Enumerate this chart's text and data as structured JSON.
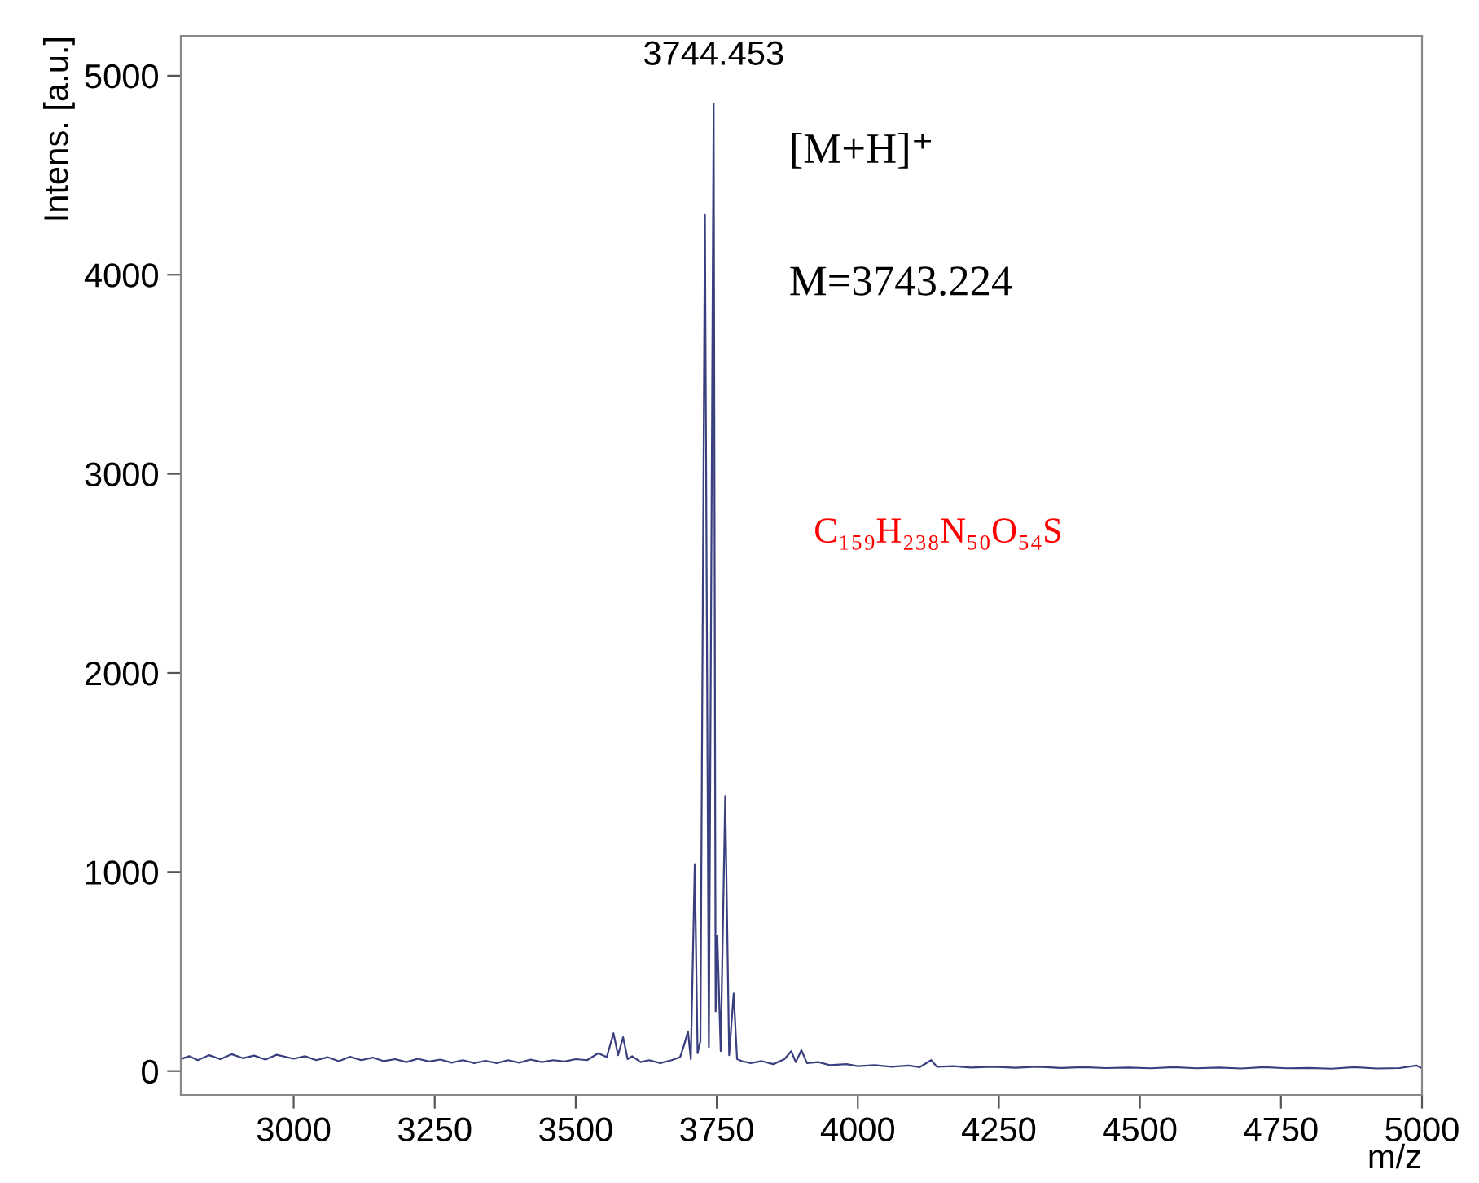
{
  "chart_data": {
    "type": "line",
    "xlabel": "m/z",
    "ylabel": "Intens. [a.u.]",
    "xlim": [
      2800,
      5000
    ],
    "xticks": [
      3000,
      3250,
      3500,
      3750,
      4000,
      4250,
      4500,
      4750,
      5000
    ],
    "ylim": [
      -120,
      5200
    ],
    "yticks": [
      0,
      1000,
      2000,
      3000,
      4000,
      5000
    ],
    "grid": false,
    "legend": false,
    "marker": "none",
    "line_style": "solid",
    "annotations": [
      {
        "text": "3744.453",
        "x": 3744.453,
        "y": 4860
      },
      "[M+H]⁺",
      "M=3743.224",
      "C₁₅₉H₂₃₈N₅₀O₅₄S"
    ],
    "series": [
      {
        "color": "#3a3f7f",
        "x": [
          2800,
          2815,
          2830,
          2850,
          2870,
          2890,
          2910,
          2930,
          2950,
          2970,
          3000,
          3020,
          3040,
          3060,
          3080,
          3100,
          3120,
          3140,
          3160,
          3180,
          3200,
          3220,
          3240,
          3260,
          3280,
          3300,
          3320,
          3340,
          3360,
          3380,
          3400,
          3420,
          3440,
          3460,
          3480,
          3500,
          3520,
          3540,
          3555,
          3567,
          3575,
          3584,
          3592,
          3600,
          3615,
          3630,
          3650,
          3670,
          3685,
          3692,
          3699,
          3704,
          3711,
          3716,
          3721,
          3729,
          3736,
          3744.453,
          3748,
          3751,
          3757,
          3765,
          3772,
          3780,
          3786,
          3795,
          3810,
          3830,
          3850,
          3870,
          3882,
          3890,
          3900,
          3910,
          3930,
          3950,
          3980,
          4000,
          4030,
          4060,
          4090,
          4110,
          4130,
          4140,
          4170,
          4200,
          4240,
          4280,
          4320,
          4360,
          4400,
          4440,
          4480,
          4520,
          4560,
          4600,
          4640,
          4680,
          4720,
          4760,
          4800,
          4840,
          4880,
          4920,
          4960,
          4990,
          5000
        ],
        "values": [
          60,
          75,
          55,
          80,
          60,
          85,
          65,
          78,
          58,
          82,
          62,
          75,
          55,
          70,
          50,
          72,
          55,
          68,
          50,
          60,
          45,
          62,
          48,
          58,
          42,
          55,
          40,
          52,
          40,
          55,
          42,
          58,
          45,
          55,
          48,
          60,
          55,
          90,
          70,
          190,
          80,
          170,
          60,
          75,
          45,
          55,
          40,
          55,
          70,
          130,
          200,
          60,
          1040,
          90,
          150,
          4300,
          120,
          4860,
          300,
          680,
          100,
          1380,
          80,
          390,
          60,
          50,
          40,
          50,
          35,
          60,
          100,
          45,
          105,
          40,
          45,
          30,
          35,
          25,
          30,
          22,
          28,
          20,
          55,
          22,
          25,
          18,
          22,
          17,
          22,
          16,
          20,
          15,
          18,
          14,
          20,
          14,
          18,
          13,
          20,
          14,
          16,
          12,
          20,
          13,
          15,
          28,
          14
        ]
      }
    ]
  }
}
